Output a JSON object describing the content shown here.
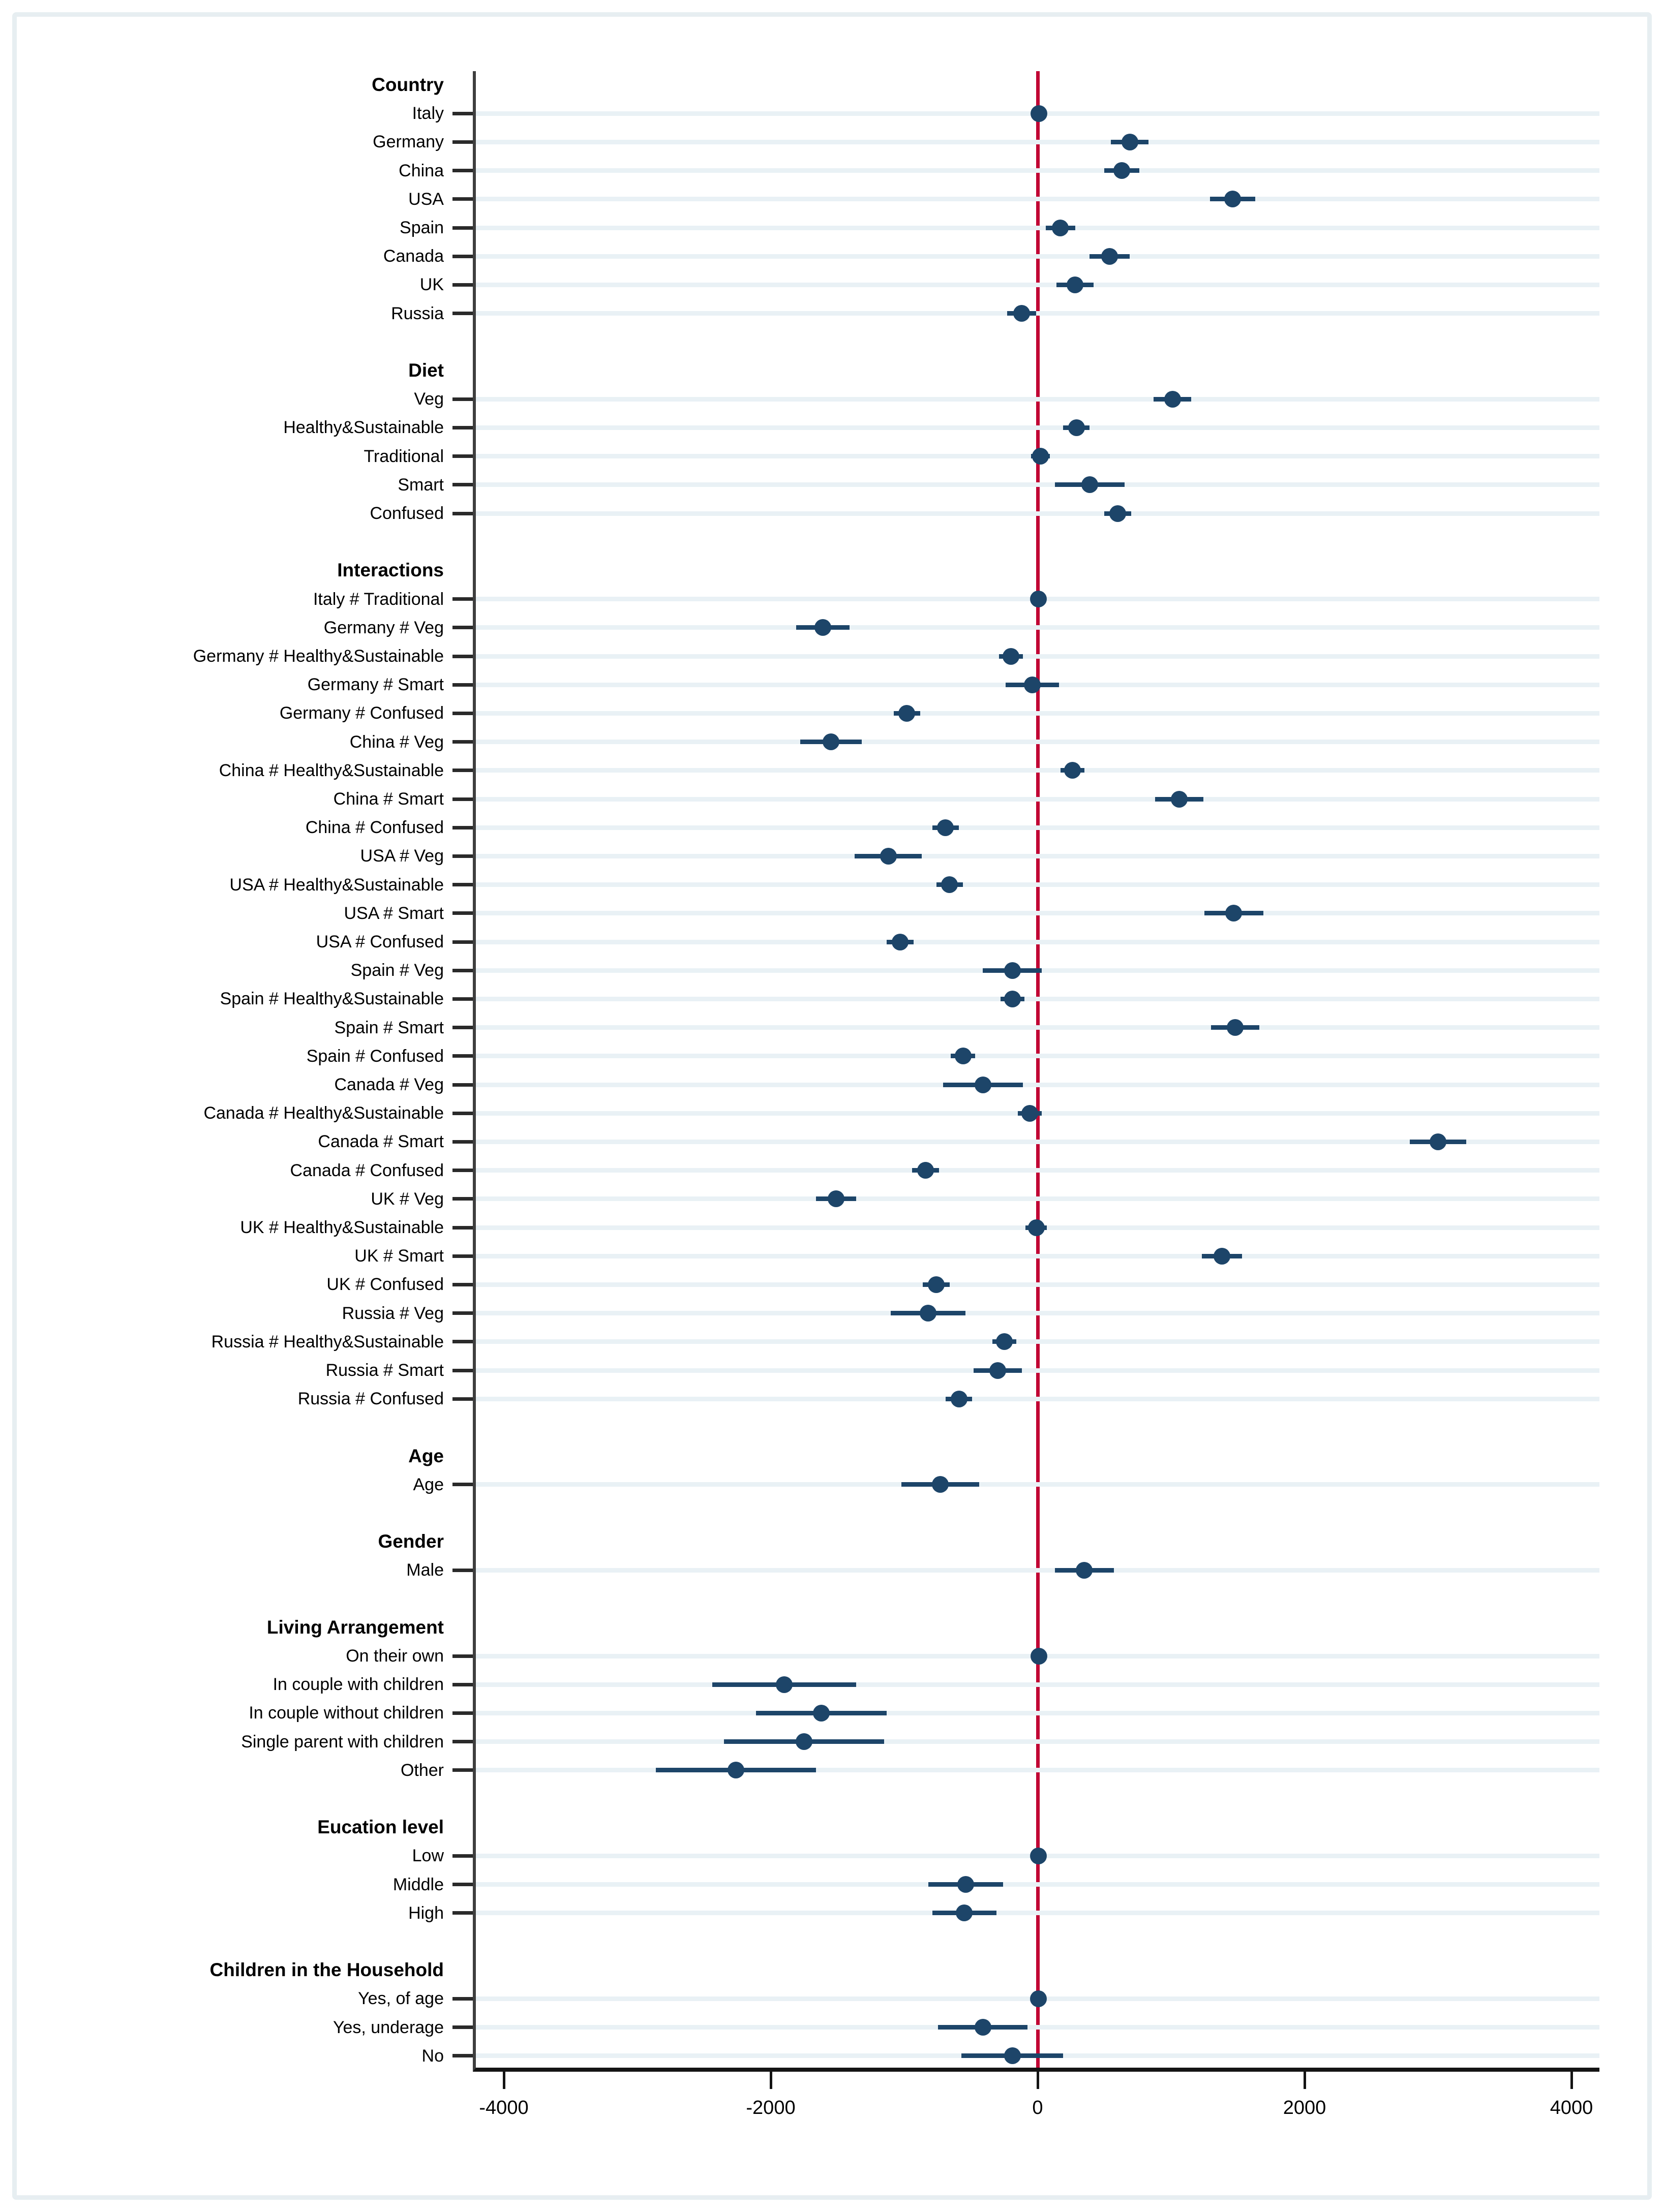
{
  "colors": {
    "marker": "#1d4569",
    "zero_line": "#c10534",
    "row_stripe": "#e9f1f5",
    "axis": "#141414",
    "tick": "#2a2a2a",
    "text": "#000000",
    "figure_border": "#e7eef1",
    "background": "#ffffff"
  },
  "chart_data": {
    "type": "scatter",
    "subtype": "coefficient-forest-plot",
    "title": "",
    "xlabel": "",
    "ylabel": "",
    "legend_position": "none",
    "grid": "light horizontal stripe on every coefficient row",
    "x_axis": {
      "min": -4250,
      "max": 4250,
      "ticks": [
        -4000,
        -2000,
        0,
        2000,
        4000
      ],
      "tick_labels": [
        "-4000",
        "-2000",
        "0",
        "2000",
        "4000"
      ],
      "zero_reference_line": 0
    },
    "rows": [
      {
        "kind": "header",
        "label": "Country"
      },
      {
        "kind": "item",
        "label": "Italy",
        "value": 10,
        "lo": -50,
        "hi": 70
      },
      {
        "kind": "item",
        "label": "Germany",
        "value": 690,
        "lo": 550,
        "hi": 830
      },
      {
        "kind": "item",
        "label": "China",
        "value": 630,
        "lo": 500,
        "hi": 760
      },
      {
        "kind": "item",
        "label": "USA",
        "value": 1460,
        "lo": 1290,
        "hi": 1630
      },
      {
        "kind": "item",
        "label": "Spain",
        "value": 170,
        "lo": 60,
        "hi": 280
      },
      {
        "kind": "item",
        "label": "Canada",
        "value": 540,
        "lo": 390,
        "hi": 690
      },
      {
        "kind": "item",
        "label": "UK",
        "value": 280,
        "lo": 140,
        "hi": 420
      },
      {
        "kind": "item",
        "label": "Russia",
        "value": -120,
        "lo": -230,
        "hi": -10
      },
      {
        "kind": "gap"
      },
      {
        "kind": "header",
        "label": "Diet"
      },
      {
        "kind": "item",
        "label": "Veg",
        "value": 1010,
        "lo": 870,
        "hi": 1150
      },
      {
        "kind": "item",
        "label": "Healthy&Sustainable",
        "value": 290,
        "lo": 190,
        "hi": 390
      },
      {
        "kind": "item",
        "label": "Traditional",
        "value": 20,
        "lo": -50,
        "hi": 90
      },
      {
        "kind": "item",
        "label": "Smart",
        "value": 390,
        "lo": 130,
        "hi": 650
      },
      {
        "kind": "item",
        "label": "Confused",
        "value": 600,
        "lo": 500,
        "hi": 700
      },
      {
        "kind": "gap"
      },
      {
        "kind": "header",
        "label": "Interactions"
      },
      {
        "kind": "item",
        "label": "Italy # Traditional",
        "value": 5,
        "lo": -55,
        "hi": 65
      },
      {
        "kind": "item",
        "label": "Germany # Veg",
        "value": -1610,
        "lo": -1810,
        "hi": -1410
      },
      {
        "kind": "item",
        "label": "Germany # Healthy&Sustainable",
        "value": -200,
        "lo": -290,
        "hi": -110
      },
      {
        "kind": "item",
        "label": "Germany # Smart",
        "value": -40,
        "lo": -240,
        "hi": 160
      },
      {
        "kind": "item",
        "label": "Germany # Confused",
        "value": -980,
        "lo": -1080,
        "hi": -880
      },
      {
        "kind": "item",
        "label": "China # Veg",
        "value": -1550,
        "lo": -1780,
        "hi": -1320
      },
      {
        "kind": "item",
        "label": "China # Healthy&Sustainable",
        "value": 260,
        "lo": 170,
        "hi": 350
      },
      {
        "kind": "item",
        "label": "China # Smart",
        "value": 1060,
        "lo": 880,
        "hi": 1240
      },
      {
        "kind": "item",
        "label": "China # Confused",
        "value": -690,
        "lo": -790,
        "hi": -590
      },
      {
        "kind": "item",
        "label": "USA # Veg",
        "value": -1120,
        "lo": -1370,
        "hi": -870
      },
      {
        "kind": "item",
        "label": "USA # Healthy&Sustainable",
        "value": -660,
        "lo": -760,
        "hi": -560
      },
      {
        "kind": "item",
        "label": "USA # Smart",
        "value": 1470,
        "lo": 1250,
        "hi": 1690
      },
      {
        "kind": "item",
        "label": "USA # Confused",
        "value": -1030,
        "lo": -1130,
        "hi": -930
      },
      {
        "kind": "item",
        "label": "Spain # Veg",
        "value": -190,
        "lo": -410,
        "hi": 30
      },
      {
        "kind": "item",
        "label": "Spain # Healthy&Sustainable",
        "value": -190,
        "lo": -280,
        "hi": -100
      },
      {
        "kind": "item",
        "label": "Spain # Smart",
        "value": 1480,
        "lo": 1300,
        "hi": 1660
      },
      {
        "kind": "item",
        "label": "Spain # Confused",
        "value": -560,
        "lo": -650,
        "hi": -470
      },
      {
        "kind": "item",
        "label": "Canada # Veg",
        "value": -410,
        "lo": -710,
        "hi": -110
      },
      {
        "kind": "item",
        "label": "Canada # Healthy&Sustainable",
        "value": -60,
        "lo": -150,
        "hi": 30
      },
      {
        "kind": "item",
        "label": "Canada # Smart",
        "value": 3000,
        "lo": 2790,
        "hi": 3210
      },
      {
        "kind": "item",
        "label": "Canada # Confused",
        "value": -840,
        "lo": -940,
        "hi": -740
      },
      {
        "kind": "item",
        "label": "UK # Veg",
        "value": -1510,
        "lo": -1660,
        "hi": -1360
      },
      {
        "kind": "item",
        "label": "UK # Healthy&Sustainable",
        "value": -10,
        "lo": -90,
        "hi": 70
      },
      {
        "kind": "item",
        "label": "UK # Smart",
        "value": 1380,
        "lo": 1230,
        "hi": 1530
      },
      {
        "kind": "item",
        "label": "UK # Confused",
        "value": -760,
        "lo": -860,
        "hi": -660
      },
      {
        "kind": "item",
        "label": "Russia # Veg",
        "value": -820,
        "lo": -1100,
        "hi": -540
      },
      {
        "kind": "item",
        "label": "Russia # Healthy&Sustainable",
        "value": -250,
        "lo": -340,
        "hi": -160
      },
      {
        "kind": "item",
        "label": "Russia # Smart",
        "value": -300,
        "lo": -480,
        "hi": -120
      },
      {
        "kind": "item",
        "label": "Russia # Confused",
        "value": -590,
        "lo": -690,
        "hi": -490
      },
      {
        "kind": "gap"
      },
      {
        "kind": "header",
        "label": "Age"
      },
      {
        "kind": "item",
        "label": "Age",
        "value": -730,
        "lo": -1020,
        "hi": -440
      },
      {
        "kind": "gap"
      },
      {
        "kind": "header",
        "label": "Gender"
      },
      {
        "kind": "item",
        "label": "Male",
        "value": 350,
        "lo": 130,
        "hi": 570
      },
      {
        "kind": "gap"
      },
      {
        "kind": "header",
        "label": "Living Arrangement"
      },
      {
        "kind": "item",
        "label": "On their own",
        "value": 10,
        "lo": -50,
        "hi": 70
      },
      {
        "kind": "item",
        "label": "In couple with children",
        "value": -1900,
        "lo": -2440,
        "hi": -1360
      },
      {
        "kind": "item",
        "label": "In couple without children",
        "value": -1620,
        "lo": -2110,
        "hi": -1130
      },
      {
        "kind": "item",
        "label": "Single parent with children",
        "value": -1750,
        "lo": -2350,
        "hi": -1150
      },
      {
        "kind": "item",
        "label": "Other",
        "value": -2260,
        "lo": -2860,
        "hi": -1660
      },
      {
        "kind": "gap"
      },
      {
        "kind": "header",
        "label": "Eucation level"
      },
      {
        "kind": "item",
        "label": "Low",
        "value": 5,
        "lo": -55,
        "hi": 65
      },
      {
        "kind": "item",
        "label": "Middle",
        "value": -540,
        "lo": -820,
        "hi": -260
      },
      {
        "kind": "item",
        "label": "High",
        "value": -550,
        "lo": -790,
        "hi": -310
      },
      {
        "kind": "gap"
      },
      {
        "kind": "header",
        "label": "Children in the Household"
      },
      {
        "kind": "item",
        "label": "Yes, of age",
        "value": 5,
        "lo": -55,
        "hi": 65
      },
      {
        "kind": "item",
        "label": "Yes, underage",
        "value": -410,
        "lo": -745,
        "hi": -75
      },
      {
        "kind": "item",
        "label": "No",
        "value": -190,
        "lo": -570,
        "hi": 190
      }
    ]
  }
}
